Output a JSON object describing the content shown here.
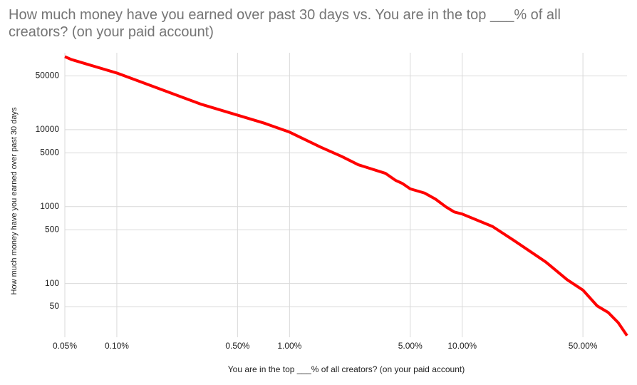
{
  "chart_data": {
    "type": "line",
    "title_lines": [
      "How much money have you earned over past 30 days vs. You are in the top ___% of all",
      "creators? (on your paid account)"
    ],
    "x_label": "You are in the top ___% of all creators? (on your paid account)",
    "y_label": "How much money have you earned over past 30 days",
    "x": [
      0.05,
      0.0545,
      0.1,
      0.31,
      0.71,
      1.0,
      1.52,
      2.0,
      2.5,
      3.6,
      4.1,
      4.5,
      5.0,
      6.05,
      7.0,
      8.05,
      9.0,
      10.0,
      15,
      19.9,
      30.5,
      40.5,
      50,
      60.5,
      70,
      80,
      90
    ],
    "values": [
      89000,
      81700,
      54500,
      21300,
      12200,
      9300,
      5900,
      4500,
      3500,
      2700,
      2200,
      2000,
      1700,
      1500,
      1250,
      990,
      850,
      800,
      550,
      363,
      190,
      112,
      82,
      51,
      42,
      31,
      21
    ],
    "color": "#ff0000",
    "xscale": "log",
    "yscale": "log",
    "xlim": [
      0.05,
      90
    ],
    "ylim": [
      20,
      100000
    ],
    "xticks": [
      {
        "value": 0.05,
        "label": "0.05%"
      },
      {
        "value": 0.1,
        "label": "0.10%"
      },
      {
        "value": 0.5,
        "label": "0.50%"
      },
      {
        "value": 1,
        "label": "1.00%"
      },
      {
        "value": 5,
        "label": "5.00%"
      },
      {
        "value": 10,
        "label": "10.00%"
      },
      {
        "value": 50,
        "label": "50.00%"
      }
    ],
    "yticks": [
      50,
      100,
      500,
      1000,
      5000,
      10000,
      50000
    ],
    "grid": true
  }
}
